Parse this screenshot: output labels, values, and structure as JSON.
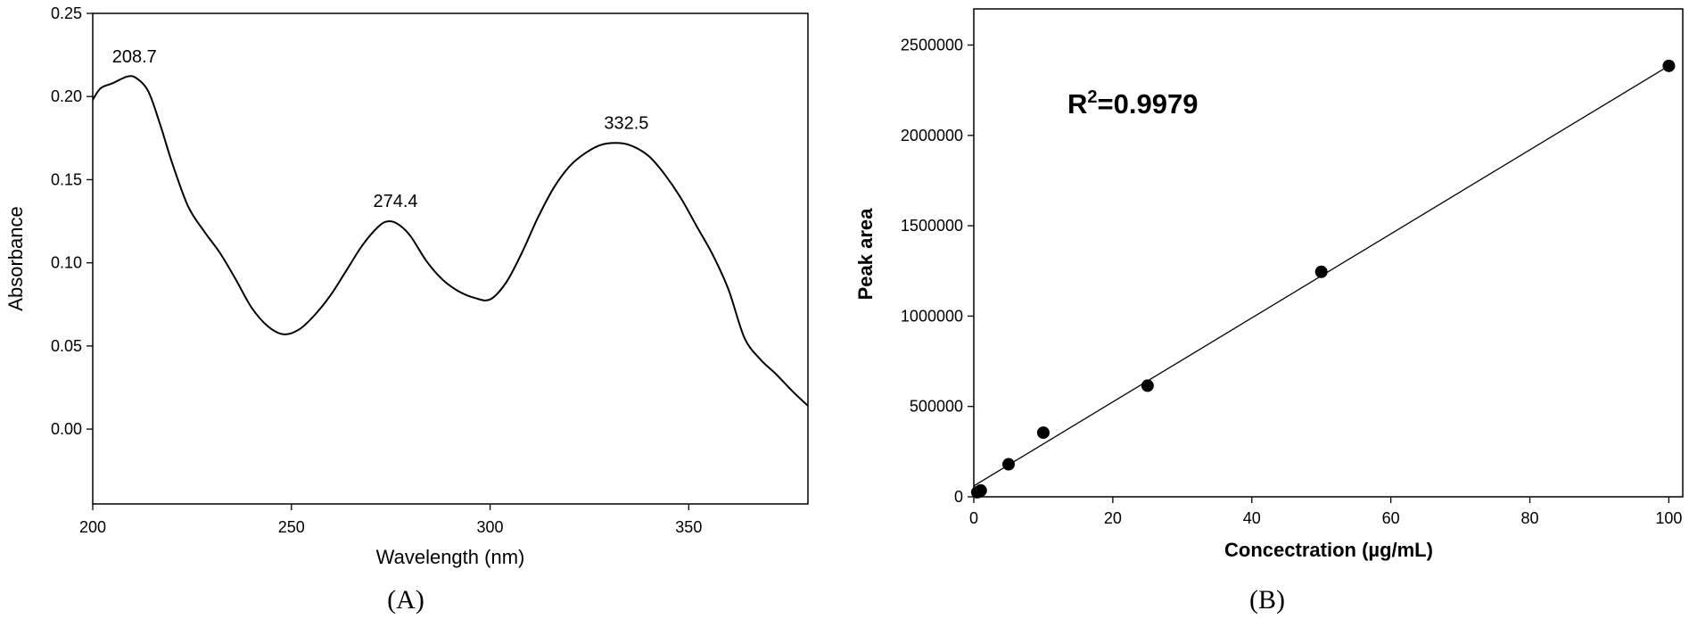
{
  "chart_data": [
    {
      "type": "line",
      "panel_label": "(A)",
      "xlabel": "Wavelength (nm)",
      "ylabel": "Absorbance",
      "xlim": [
        200,
        380
      ],
      "ylim": [
        -0.045,
        0.25
      ],
      "xticks": [
        200,
        250,
        300,
        350
      ],
      "xtick_labels": [
        "200",
        "250",
        "300",
        "350"
      ],
      "yticks": [
        0.0,
        0.05,
        0.1,
        0.15,
        0.2,
        0.25
      ],
      "ytick_labels": [
        "0.00",
        "0.05",
        "0.10",
        "0.15",
        "0.20",
        "0.25"
      ],
      "grid": false,
      "series": [
        {
          "x": [
            200,
            202,
            205,
            208.7,
            211,
            214,
            217,
            220,
            224,
            228,
            232,
            236,
            240,
            244,
            248,
            252,
            256,
            260,
            264,
            268,
            272,
            274.4,
            277,
            280,
            284,
            288,
            292,
            296,
            300,
            304,
            308,
            312,
            316,
            320,
            324,
            328,
            332.5,
            336,
            340,
            344,
            348,
            352,
            356,
            360,
            364,
            368,
            372,
            376,
            380
          ],
          "y": [
            0.198,
            0.205,
            0.208,
            0.212,
            0.211,
            0.203,
            0.183,
            0.16,
            0.134,
            0.119,
            0.106,
            0.09,
            0.073,
            0.062,
            0.057,
            0.06,
            0.069,
            0.081,
            0.096,
            0.111,
            0.122,
            0.125,
            0.123,
            0.116,
            0.101,
            0.09,
            0.083,
            0.079,
            0.078,
            0.088,
            0.106,
            0.127,
            0.145,
            0.158,
            0.166,
            0.171,
            0.172,
            0.17,
            0.164,
            0.153,
            0.139,
            0.122,
            0.105,
            0.084,
            0.055,
            0.042,
            0.033,
            0.023,
            0.014
          ]
        }
      ],
      "annotations": [
        {
          "text": "208.7",
          "x": 208.7,
          "y": 0.212
        },
        {
          "text": "274.4",
          "x": 274.4,
          "y": 0.125
        },
        {
          "text": "332.5",
          "x": 332.5,
          "y": 0.172
        }
      ]
    },
    {
      "type": "scatter",
      "panel_label": "(B)",
      "xlabel": "Concectration (µg/mL)",
      "ylabel": "Peak area",
      "xlim": [
        0,
        102
      ],
      "ylim": [
        0,
        2700000
      ],
      "xticks": [
        0,
        20,
        40,
        60,
        80,
        100
      ],
      "xtick_labels": [
        "0",
        "20",
        "40",
        "60",
        "80",
        "100"
      ],
      "yticks": [
        0,
        500000,
        1000000,
        1500000,
        2000000,
        2500000
      ],
      "ytick_labels": [
        "0",
        "500000",
        "1000000",
        "1500000",
        "2000000",
        "2500000"
      ],
      "grid": false,
      "annotation": {
        "text_main": "R",
        "text_sup": "2",
        "text_rest": "=0.9979"
      },
      "points": {
        "x": [
          0.5,
          1,
          5,
          10,
          25,
          50,
          100
        ],
        "y": [
          25000,
          35000,
          180000,
          355000,
          615000,
          1245000,
          2385000
        ]
      },
      "fit_line": {
        "x": [
          0,
          100
        ],
        "y": [
          60000,
          2385000
        ]
      }
    }
  ]
}
